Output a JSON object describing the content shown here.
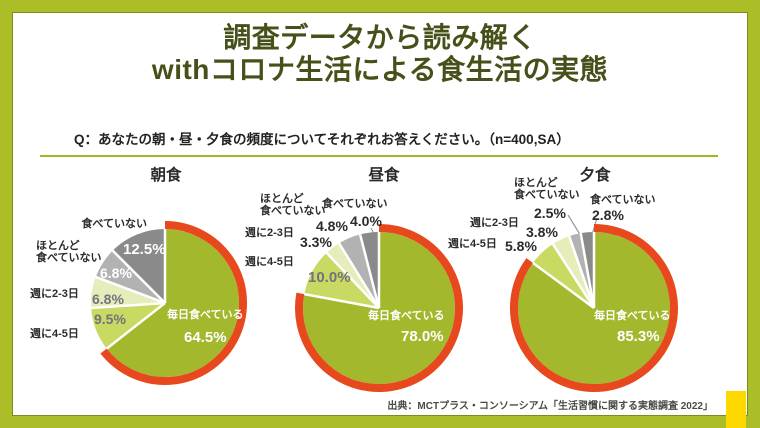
{
  "title": {
    "line1": "調査データから読み解く",
    "line2": "withコロナ生活による食生活の実態"
  },
  "question": "Q：あなたの朝・昼・夕食の頻度についてそれぞれお答えください。（n=400,SA）",
  "source": "出典：MCTプラス・コンソーシアム「生活習慣に関する実態調査 2022」",
  "labels": {
    "rare_line1": "ほとんど",
    "rare_line2": "食べていない"
  },
  "colors": {
    "frame": "#abbe28",
    "panel": "#ffffff",
    "title_text": "#46511a",
    "ring": "#e8481d",
    "slices": [
      "#a3b82d",
      "#c9d961",
      "#e6edba",
      "#b2b2b2",
      "#8a8a8a"
    ],
    "corner_accent": "#ffd800"
  },
  "chart_data": [
    {
      "type": "pie",
      "title": "朝食",
      "unit": "%",
      "legend_position": "outside-labels",
      "highlight": "毎日食べている",
      "slices": [
        {
          "name": "毎日食べている",
          "value": 64.5,
          "pct_label": "64.5%"
        },
        {
          "name": "週に4-5日",
          "value": 9.5,
          "pct_label": "9.5%"
        },
        {
          "name": "週に2-3日",
          "value": 6.8,
          "pct_label": "6.8%"
        },
        {
          "name": "ほとんど食べていない",
          "value": 6.8,
          "pct_label": "6.8%"
        },
        {
          "name": "食べていない",
          "value": 12.5,
          "pct_label": "12.5%"
        }
      ]
    },
    {
      "type": "pie",
      "title": "昼食",
      "unit": "%",
      "legend_position": "outside-labels",
      "highlight": "毎日食べている",
      "slices": [
        {
          "name": "毎日食べている",
          "value": 78.0,
          "pct_label": "78.0%"
        },
        {
          "name": "週に4-5日",
          "value": 10.0,
          "pct_label": "10.0%"
        },
        {
          "name": "週に2-3日",
          "value": 3.3,
          "pct_label": "3.3%"
        },
        {
          "name": "ほとんど食べていない",
          "value": 4.8,
          "pct_label": "4.8%"
        },
        {
          "name": "食べていない",
          "value": 4.0,
          "pct_label": "4.0%"
        }
      ]
    },
    {
      "type": "pie",
      "title": "夕食",
      "unit": "%",
      "legend_position": "outside-labels",
      "highlight": "毎日食べている",
      "slices": [
        {
          "name": "毎日食べている",
          "value": 85.3,
          "pct_label": "85.3%"
        },
        {
          "name": "週に4-5日",
          "value": 5.8,
          "pct_label": "5.8%"
        },
        {
          "name": "週に2-3日",
          "value": 3.8,
          "pct_label": "3.8%"
        },
        {
          "name": "ほとんど食べていない",
          "value": 2.5,
          "pct_label": "2.5%"
        },
        {
          "name": "食べていない",
          "value": 2.8,
          "pct_label": "2.8%"
        }
      ]
    }
  ]
}
